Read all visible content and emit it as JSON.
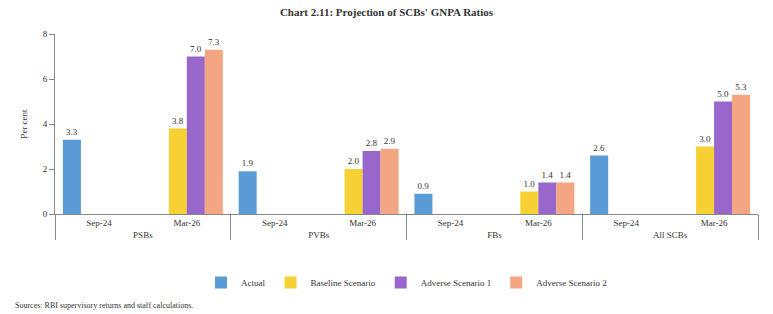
{
  "chart_data": {
    "type": "bar",
    "title": "Chart 2.11: Projection of SCBs' GNPA Ratios",
    "y_label": "Per cent",
    "source": "Sources: RBI supervisory returns and staff calculations.",
    "groups": [
      "PSBs",
      "PSBs",
      "PVBs",
      "PVBs",
      "FBs",
      "FBs",
      "All SCBs",
      "All SCBs"
    ],
    "categories": [
      "Sep-24",
      "Mar-26",
      "Sep-24",
      "Mar-26",
      "Sep-24",
      "Mar-26",
      "Sep-24",
      "Mar-26"
    ],
    "series": [
      {
        "name": "Actual",
        "color": "#5b9bd5",
        "values": [
          3.3,
          null,
          1.9,
          null,
          0.9,
          null,
          2.6,
          null
        ],
        "value_labels": [
          "3.3",
          null,
          "1.9",
          null,
          "0.9",
          null,
          "2.6",
          null
        ]
      },
      {
        "name": "Baseline Scenario",
        "color": "#f7d033",
        "values": [
          null,
          3.8,
          null,
          2.0,
          null,
          1.0,
          null,
          3.0
        ],
        "value_labels": [
          null,
          "3.8",
          null,
          "2.0",
          null,
          "1.0",
          null,
          "3.0"
        ]
      },
      {
        "name": "Adverse Scenario 1",
        "color": "#9966cc",
        "values": [
          null,
          7.0,
          null,
          2.8,
          null,
          1.4,
          null,
          5.0
        ],
        "value_labels": [
          null,
          "7.0",
          null,
          "2.8",
          null,
          "1.4",
          null,
          "5.0"
        ]
      },
      {
        "name": "Adverse Scenario 2",
        "color": "#f4a582",
        "values": [
          null,
          7.3,
          null,
          2.9,
          null,
          1.4,
          null,
          5.3
        ],
        "value_labels": [
          null,
          "7.3",
          null,
          "2.9",
          null,
          "1.4",
          null,
          "5.3"
        ]
      }
    ],
    "ylim": [
      0,
      8
    ],
    "yticks": [
      0,
      2,
      4,
      6,
      8
    ],
    "grid": false,
    "legend": "bottom",
    "data_labels": true
  }
}
